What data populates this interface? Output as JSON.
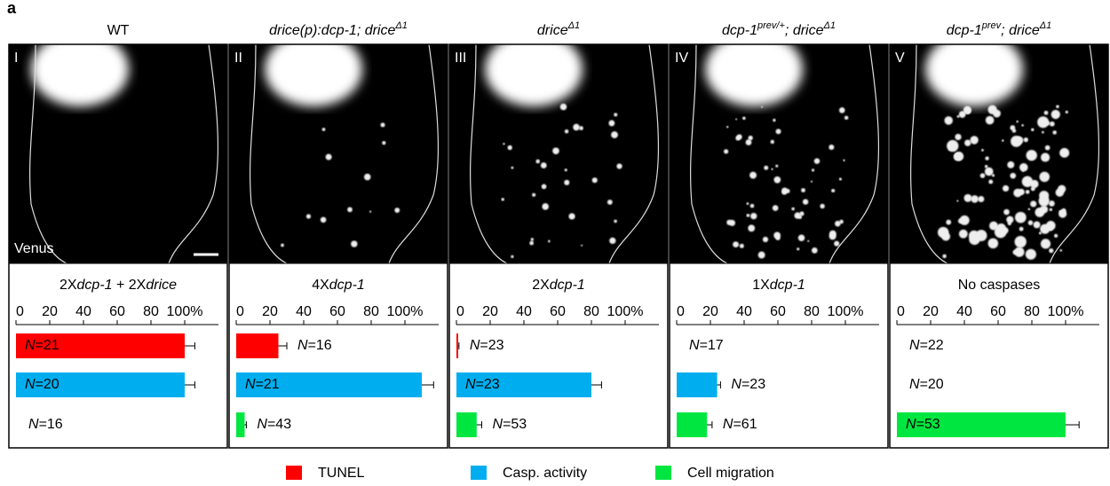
{
  "panel_letter": "a",
  "count_symbol": "N",
  "count_sep": "=",
  "legend": [
    {
      "name": "TUNEL",
      "color": "#ff0000"
    },
    {
      "name": "Casp. activity",
      "color": "#00aeef"
    },
    {
      "name": "Cell migration",
      "color": "#00e640"
    }
  ],
  "chart_data": [
    {
      "type": "bar",
      "orientation": "horizontal",
      "title": [
        {
          "text": "WT"
        }
      ],
      "image_label": "I",
      "channel_label": "Venus",
      "subtitle": [
        {
          "text": "2X"
        },
        {
          "text": "dcp-1",
          "italic": true
        },
        {
          "text": " + 2X"
        },
        {
          "text": "drice",
          "italic": true
        }
      ],
      "xlim": [
        0,
        120
      ],
      "xticks": [
        0,
        20,
        40,
        60,
        80,
        {
          "value": 100,
          "label": "100%"
        }
      ],
      "values": [
        100,
        100,
        0
      ],
      "errors": [
        6,
        6,
        0
      ],
      "counts": [
        21,
        20,
        16
      ]
    },
    {
      "type": "bar",
      "orientation": "horizontal",
      "title": [
        {
          "text": "drice(p):dcp-1; drice",
          "italic": true
        },
        {
          "text": "Δ1",
          "italic": true,
          "sup": true
        }
      ],
      "image_label": "II",
      "subtitle": [
        {
          "text": "4X"
        },
        {
          "text": "dcp-1",
          "italic": true
        }
      ],
      "xlim": [
        0,
        120
      ],
      "xticks": [
        0,
        20,
        40,
        60,
        80,
        {
          "value": 100,
          "label": "100%"
        }
      ],
      "values": [
        25,
        110,
        5
      ],
      "errors": [
        5,
        7,
        1
      ],
      "counts": [
        16,
        21,
        43
      ]
    },
    {
      "type": "bar",
      "orientation": "horizontal",
      "title": [
        {
          "text": "drice",
          "italic": true
        },
        {
          "text": "Δ1",
          "italic": true,
          "sup": true
        }
      ],
      "image_label": "III",
      "subtitle": [
        {
          "text": "2X"
        },
        {
          "text": "dcp-1",
          "italic": true
        }
      ],
      "xlim": [
        0,
        120
      ],
      "xticks": [
        0,
        20,
        40,
        60,
        80,
        {
          "value": 100,
          "label": "100%"
        }
      ],
      "values": [
        1,
        80,
        12
      ],
      "errors": [
        0.5,
        6,
        3
      ],
      "counts": [
        23,
        23,
        53
      ]
    },
    {
      "type": "bar",
      "orientation": "horizontal",
      "title": [
        {
          "text": "dcp-1",
          "italic": true
        },
        {
          "text": "prev/+",
          "italic": true,
          "sup": true
        },
        {
          "text": "; drice",
          "italic": true
        },
        {
          "text": "Δ1",
          "italic": true,
          "sup": true
        }
      ],
      "image_label": "IV",
      "subtitle": [
        {
          "text": "1X"
        },
        {
          "text": "dcp-1",
          "italic": true
        }
      ],
      "xlim": [
        0,
        120
      ],
      "xticks": [
        0,
        20,
        40,
        60,
        80,
        {
          "value": 100,
          "label": "100%"
        }
      ],
      "values": [
        0,
        24,
        18
      ],
      "errors": [
        0,
        2,
        3
      ],
      "counts": [
        17,
        23,
        61
      ]
    },
    {
      "type": "bar",
      "orientation": "horizontal",
      "title": [
        {
          "text": "dcp-1",
          "italic": true
        },
        {
          "text": "prev",
          "italic": true,
          "sup": true
        },
        {
          "text": "; drice",
          "italic": true
        },
        {
          "text": "Δ1",
          "italic": true,
          "sup": true
        }
      ],
      "image_label": "V",
      "subtitle": [
        {
          "text": "No caspases"
        }
      ],
      "xlim": [
        0,
        120
      ],
      "xticks": [
        0,
        20,
        40,
        60,
        80,
        {
          "value": 100,
          "label": "100%"
        }
      ],
      "values": [
        0,
        0,
        100
      ],
      "errors": [
        0,
        0,
        8
      ],
      "counts": [
        22,
        20,
        53
      ]
    }
  ]
}
